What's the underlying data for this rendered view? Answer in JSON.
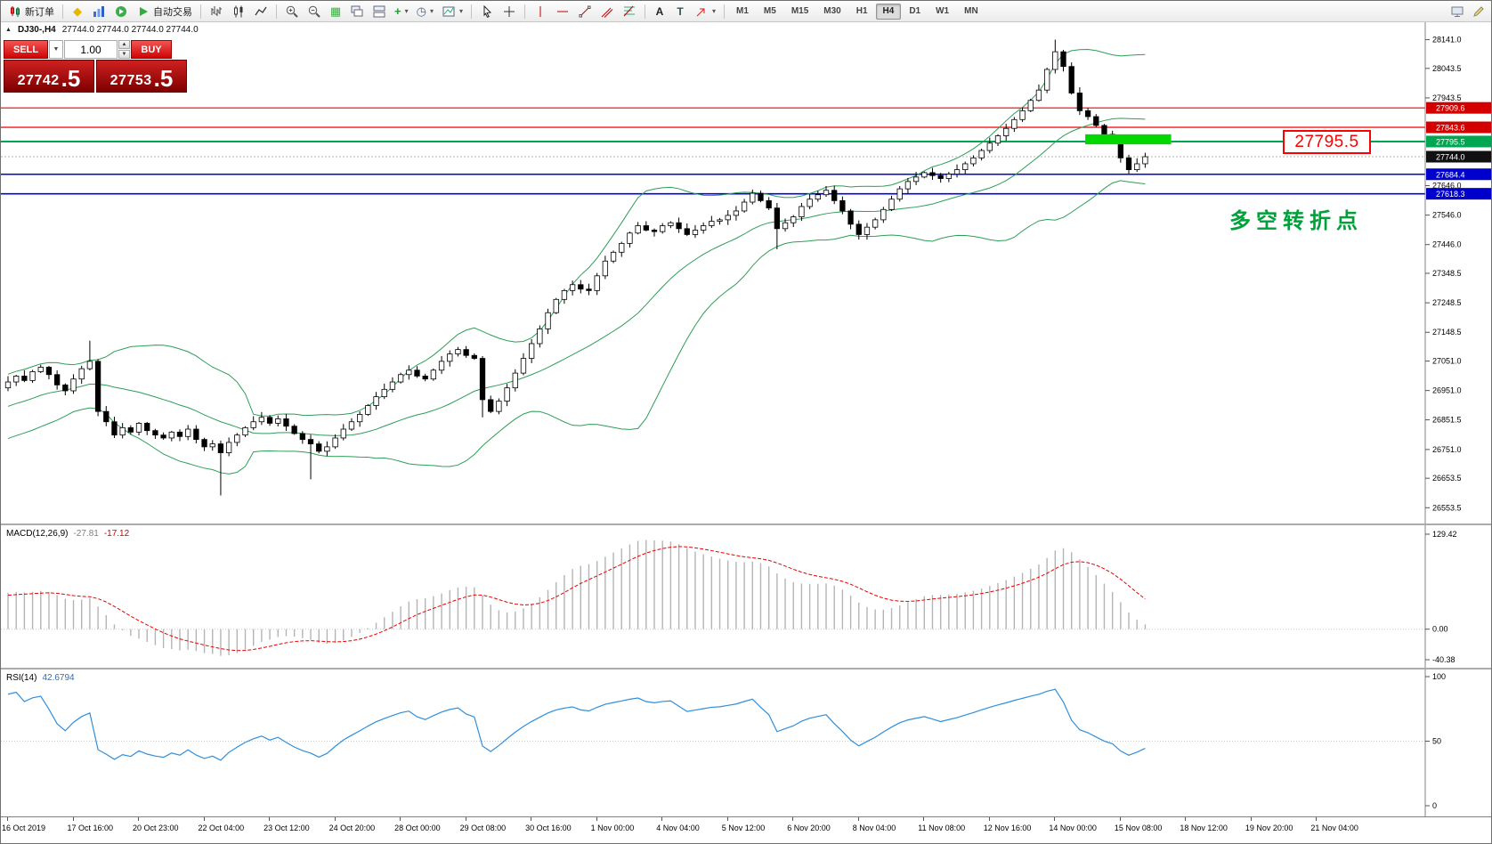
{
  "toolbar": {
    "new_order_label": "新订单",
    "autotrade_label": "自动交易",
    "timeframes": [
      "M1",
      "M5",
      "M15",
      "M30",
      "H1",
      "H4",
      "D1",
      "W1",
      "MN"
    ],
    "active_timeframe": "H4"
  },
  "symbol_info": {
    "expander": "▲",
    "title": "DJ30-,H4",
    "ohlc": "27744.0 27744.0 27744.0 27744.0"
  },
  "trade_panel": {
    "sell_label": "SELL",
    "buy_label": "BUY",
    "volume": "1.00",
    "sell_price_main": "27742",
    "sell_price_frac": ".5",
    "buy_price_main": "27753",
    "buy_price_frac": ".5"
  },
  "price_axis": {
    "labels": [
      "28141.0",
      "28043.5",
      "27943.5",
      "27646.0",
      "27546.0",
      "27446.0",
      "27348.5",
      "27248.5",
      "27148.5",
      "27051.0",
      "26951.0",
      "26851.5",
      "26751.0",
      "26653.5",
      "26553.5"
    ],
    "tags": [
      {
        "value": "27909.6",
        "price": 27909.6,
        "color": "#d40000"
      },
      {
        "value": "27843.6",
        "price": 27843.6,
        "color": "#d40000"
      },
      {
        "value": "27795.5",
        "price": 27795.5,
        "color": "#00a651"
      },
      {
        "value": "27744.0",
        "price": 27744.0,
        "color": "#101010"
      },
      {
        "value": "27684.4",
        "price": 27684.4,
        "color": "#0000cc"
      },
      {
        "value": "27618.3",
        "price": 27618.3,
        "color": "#0000cc"
      }
    ]
  },
  "current_price": {
    "value": "27744.0",
    "price": 27744.0
  },
  "hlines": [
    {
      "price": 27909.6,
      "color": "#ee0000",
      "width": 1.2
    },
    {
      "price": 27843.6,
      "color": "#ee0000",
      "width": 1.2
    },
    {
      "price": 27795.5,
      "color": "#00a651",
      "width": 2
    },
    {
      "price": 27684.4,
      "color": "#0000ee",
      "width": 1.6
    },
    {
      "price": 27618.3,
      "color": "#0000ee",
      "width": 1.6
    }
  ],
  "annotations": {
    "price_callout": "27795.5",
    "turning_point_text": "多空转折点",
    "highlight_color": "#00d800"
  },
  "macd_panel": {
    "label": "MACD(12,26,9)",
    "value_main": "-27.81",
    "value_signal": "-17.12",
    "axis": [
      "129.42",
      "0.00",
      "-40.38"
    ]
  },
  "rsi_panel": {
    "label": "RSI(14)",
    "value": "42.6794",
    "axis": [
      "100",
      "50",
      "0"
    ]
  },
  "time_axis": [
    "16 Oct 2019",
    "17 Oct 16:00",
    "20 Oct 23:00",
    "22 Oct 04:00",
    "23 Oct 12:00",
    "24 Oct 20:00",
    "28 Oct 00:00",
    "29 Oct 08:00",
    "30 Oct 16:00",
    "1 Nov 00:00",
    "4 Nov 04:00",
    "5 Nov 12:00",
    "6 Nov 20:00",
    "8 Nov 04:00",
    "11 Nov 08:00",
    "12 Nov 16:00",
    "14 Nov 00:00",
    "15 Nov 08:00",
    "18 Nov 12:00",
    "19 Nov 20:00",
    "21 Nov 04:00"
  ],
  "chart_data": {
    "type": "candlestick+indicators",
    "symbol": "DJ30-",
    "period": "H4",
    "price_range": [
      26500,
      28200
    ],
    "first_open": 26960,
    "closes": [
      26980,
      27000,
      26985,
      27015,
      27030,
      27005,
      26970,
      26950,
      26990,
      27025,
      27050,
      26880,
      26845,
      26800,
      26825,
      26810,
      26840,
      26815,
      26800,
      26790,
      26810,
      26795,
      26820,
      26785,
      26760,
      26770,
      26740,
      26775,
      26800,
      26825,
      26845,
      26860,
      26840,
      26855,
      26830,
      26805,
      26785,
      26770,
      26745,
      26760,
      26790,
      26820,
      26845,
      26870,
      26900,
      26930,
      26955,
      26980,
      27005,
      27020,
      27000,
      26990,
      27020,
      27050,
      27075,
      27090,
      27070,
      27060,
      26920,
      26880,
      26915,
      26960,
      27010,
      27060,
      27110,
      27160,
      27215,
      27260,
      27290,
      27310,
      27295,
      27290,
      27340,
      27390,
      27420,
      27450,
      27485,
      27510,
      27495,
      27490,
      27510,
      27520,
      27500,
      27480,
      27495,
      27510,
      27525,
      27530,
      27545,
      27560,
      27590,
      27620,
      27595,
      27570,
      27500,
      27520,
      27540,
      27575,
      27600,
      27615,
      27630,
      27595,
      27560,
      27515,
      27480,
      27505,
      27530,
      27565,
      27600,
      27635,
      27660,
      27675,
      27690,
      27680,
      27670,
      27685,
      27700,
      27720,
      27740,
      27765,
      27790,
      27815,
      27840,
      27870,
      27900,
      27935,
      27970,
      28040,
      28100,
      28050,
      27960,
      27900,
      27880,
      27850,
      27820,
      27800,
      27740,
      27700,
      27720,
      27744
    ],
    "special": {
      "10": {
        "high": 27120
      },
      "26": {
        "low": 26595
      },
      "37": {
        "low": 26650
      },
      "58": {
        "low": 26860
      },
      "94": {
        "low": 27430
      },
      "128": {
        "high": 28141
      }
    },
    "highlight": {
      "start_index": 132,
      "end_index": 142.5,
      "price_top": 27820,
      "price_bottom": 27786
    },
    "bollinger": {
      "period": 20,
      "deviation": 2
    },
    "macd": {
      "fast": 12,
      "slow": 26,
      "signal": 9,
      "last_main": -27.81,
      "last_signal": -17.12,
      "range": [
        -40.38,
        129.42
      ]
    },
    "rsi": {
      "period": 14,
      "last": 42.6794,
      "range": [
        0,
        100
      ]
    }
  }
}
